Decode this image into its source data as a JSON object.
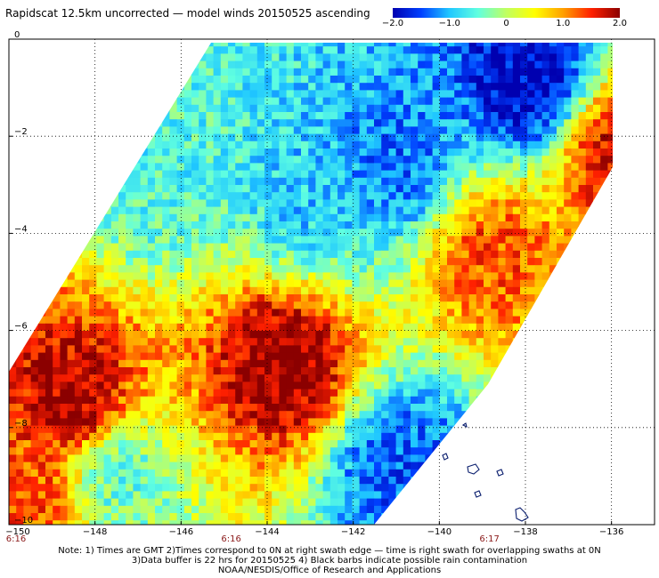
{
  "header": {
    "title": "Rapidscat 12.5km uncorrected — model winds 20150525 ascending"
  },
  "colorbar": {
    "ticks": [
      {
        "value": -2.0,
        "label": "−2.0"
      },
      {
        "value": -1.0,
        "label": "−1.0"
      },
      {
        "value": 0,
        "label": "0"
      },
      {
        "value": 1.0,
        "label": "1.0"
      },
      {
        "value": 2.0,
        "label": "2.0"
      }
    ],
    "range": [
      -2.0,
      2.0
    ],
    "colors": [
      "#0000b0",
      "#0040ff",
      "#20c8ff",
      "#60ffe0",
      "#c0ff60",
      "#ffff00",
      "#ffa000",
      "#ff2000",
      "#8b0000"
    ]
  },
  "chart_data": {
    "type": "heatmap",
    "title": "Rapidscat 12.5km uncorrected — model winds 20150525 ascending",
    "xlabel": "",
    "ylabel": "",
    "xlim": [
      -150,
      -135
    ],
    "ylim": [
      -10,
      0
    ],
    "x_ticks": [
      {
        "value": -150,
        "label": "−150"
      },
      {
        "value": -148,
        "label": "−148"
      },
      {
        "value": -146,
        "label": "−146"
      },
      {
        "value": -144,
        "label": "−144"
      },
      {
        "value": -142,
        "label": "−142"
      },
      {
        "value": -140,
        "label": "−140"
      },
      {
        "value": -138,
        "label": "−138"
      },
      {
        "value": -136,
        "label": "−136"
      }
    ],
    "y_ticks": [
      {
        "value": 0,
        "label": "0"
      },
      {
        "value": -2,
        "label": "−2"
      },
      {
        "value": -4,
        "label": "−4"
      },
      {
        "value": -6,
        "label": "−6"
      },
      {
        "value": -8,
        "label": "−8"
      },
      {
        "value": -10,
        "label": "−10"
      }
    ],
    "time_labels": [
      {
        "lon": -150,
        "label": "6:16"
      },
      {
        "lon": -145,
        "label": "6:16"
      },
      {
        "lon": -139,
        "label": "6:17"
      }
    ],
    "grid": true,
    "colorbar_range": [
      -2.0,
      2.0
    ],
    "regions": [
      {
        "name": "ne-negative",
        "lon": -137.9,
        "lat": -0.9,
        "value": -1.9
      },
      {
        "name": "north-negative",
        "lon": -141.0,
        "lat": -2.6,
        "value": -1.3
      },
      {
        "name": "north-central-cyan",
        "lon": -143.0,
        "lat": -3.2,
        "value": -0.9
      },
      {
        "name": "west-cyan",
        "lon": -146.5,
        "lat": -2.8,
        "value": -0.6
      },
      {
        "name": "east-positive",
        "lon": -138.8,
        "lat": -4.4,
        "value": 1.3
      },
      {
        "name": "ne-edge-positive",
        "lon": -135.8,
        "lat": -2.3,
        "value": 1.7
      },
      {
        "name": "central-maximum",
        "lon": -143.6,
        "lat": -6.7,
        "value": 2.0
      },
      {
        "name": "west-maximum",
        "lon": -148.5,
        "lat": -7.5,
        "value": 1.9
      },
      {
        "name": "sw-positive",
        "lon": -149.5,
        "lat": -9.3,
        "value": 1.3
      },
      {
        "name": "south-cyan",
        "lon": -147.5,
        "lat": -9.0,
        "value": -0.5
      },
      {
        "name": "se-negative",
        "lon": -140.9,
        "lat": -8.8,
        "value": -1.4
      }
    ]
  },
  "notes": {
    "line1": "Note: 1) Times are GMT 2)Times correspond to 0N at right swath edge — time is right swath for overlapping swaths at 0N",
    "line2": "3)Data buffer is 22 hrs for 20150525 4) Black barbs indicate possible rain contamination",
    "line3": "NOAA/NESDIS/Office of Research and Applications"
  }
}
